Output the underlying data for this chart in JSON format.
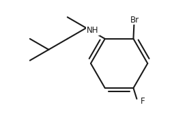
{
  "background": "#ffffff",
  "line_color": "#1a1a1a",
  "line_width": 1.5,
  "font_size": 8.5,
  "label_color": "#1a1a1a",
  "br_label": "Br",
  "nh_label": "NH",
  "f_label": "F"
}
